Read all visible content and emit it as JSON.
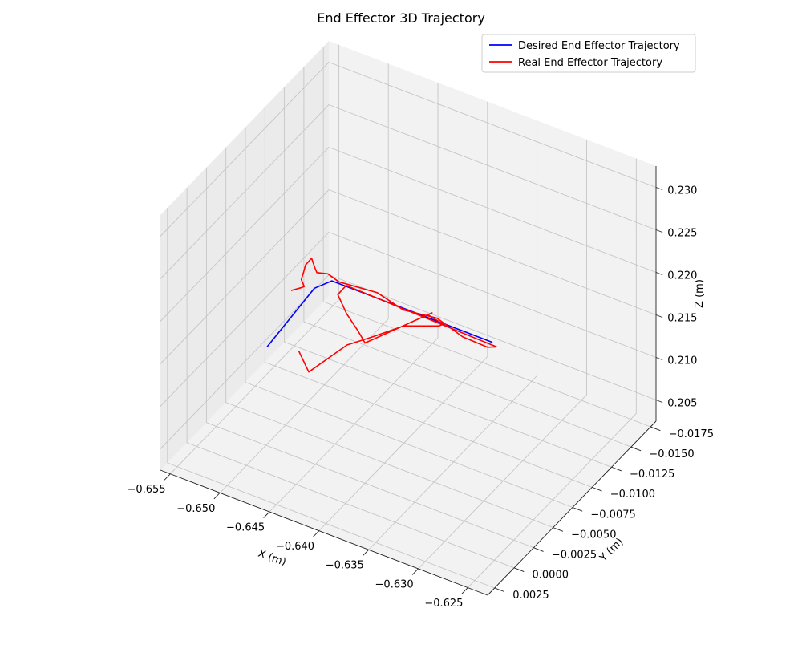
{
  "chart_data": {
    "type": "line",
    "projection": "3d",
    "title": "End Effector 3D Trajectory",
    "xlabel": "X (m)",
    "ylabel": "Y (m)",
    "zlabel": "Z (m)",
    "xlim": [
      -0.656,
      -0.623
    ],
    "ylim": [
      -0.0182,
      0.0034
    ],
    "zlim": [
      0.2025,
      0.2325
    ],
    "x_ticks": [
      -0.655,
      -0.65,
      -0.645,
      -0.64,
      -0.635,
      -0.63,
      -0.625
    ],
    "y_ticks": [
      0.0025,
      0.0,
      -0.0025,
      -0.005,
      -0.0075,
      -0.01,
      -0.0125,
      -0.015,
      -0.0175
    ],
    "z_ticks": [
      0.205,
      0.21,
      0.215,
      0.22,
      0.225,
      0.23
    ],
    "x_tick_labels": [
      "−0.655",
      "−0.650",
      "−0.645",
      "−0.640",
      "−0.635",
      "−0.630",
      "−0.625"
    ],
    "y_tick_labels": [
      "0.0025",
      "0.0000",
      "−0.0025",
      "−0.0050",
      "−0.0075",
      "−0.0100",
      "−0.0125",
      "−0.0150",
      "−0.0175"
    ],
    "z_tick_labels": [
      "0.205",
      "0.210",
      "0.215",
      "0.220",
      "0.225",
      "0.230"
    ],
    "grid": true,
    "legend_position": "top-right",
    "series": [
      {
        "name": "Desired End Effector Trajectory",
        "color": "#0000ff",
        "points": [
          [
            -0.6542,
            -0.008,
            0.207
          ],
          [
            -0.6455,
            -0.003,
            0.2225
          ],
          [
            -0.6402,
            0.0015,
            0.23
          ],
          [
            -0.624,
            0.0015,
            0.23
          ]
        ]
      },
      {
        "name": "Real End Effector Trajectory",
        "color": "#ff0000",
        "points": [
          [
            -0.651,
            -0.007,
            0.216
          ],
          [
            -0.6495,
            -0.0065,
            0.2175
          ],
          [
            -0.6485,
            -0.0055,
            0.219
          ],
          [
            -0.648,
            -0.0045,
            0.221
          ],
          [
            -0.647,
            -0.0035,
            0.2232
          ],
          [
            -0.646,
            -0.0025,
            0.2255
          ],
          [
            -0.645,
            -0.002,
            0.2272
          ],
          [
            -0.6435,
            -0.0005,
            0.2282
          ],
          [
            -0.6425,
            0.0005,
            0.229
          ],
          [
            -0.641,
            0.001,
            0.23
          ],
          [
            -0.6395,
            0.0015,
            0.2302
          ],
          [
            -0.636,
            0.001,
            0.23
          ],
          [
            -0.633,
            0.0015,
            0.2298
          ],
          [
            -0.63,
            0.001,
            0.2297
          ],
          [
            -0.627,
            0.0015,
            0.2293
          ],
          [
            -0.6245,
            0.0015,
            0.2292
          ],
          [
            -0.624,
            0.001,
            0.229
          ],
          [
            -0.639,
            0.0012,
            0.2297
          ],
          [
            -0.64,
            0.001,
            0.228
          ],
          [
            -0.6395,
            0.0005,
            0.2255
          ],
          [
            -0.6395,
            -0.001,
            0.222
          ],
          [
            -0.64,
            -0.0025,
            0.219
          ],
          [
            -0.636,
            -0.006,
            0.221
          ],
          [
            -0.638,
            -0.008,
            0.218
          ],
          [
            -0.638,
            -0.01,
            0.215
          ],
          [
            -0.64,
            -0.012,
            0.212
          ],
          [
            -0.642,
            -0.01,
            0.213
          ],
          [
            -0.642,
            -0.006,
            0.2155
          ],
          [
            -0.643,
            -0.004,
            0.216
          ],
          [
            -0.6445,
            -0.001,
            0.215
          ],
          [
            -0.6455,
            -0.001,
            0.217
          ]
        ]
      }
    ]
  }
}
